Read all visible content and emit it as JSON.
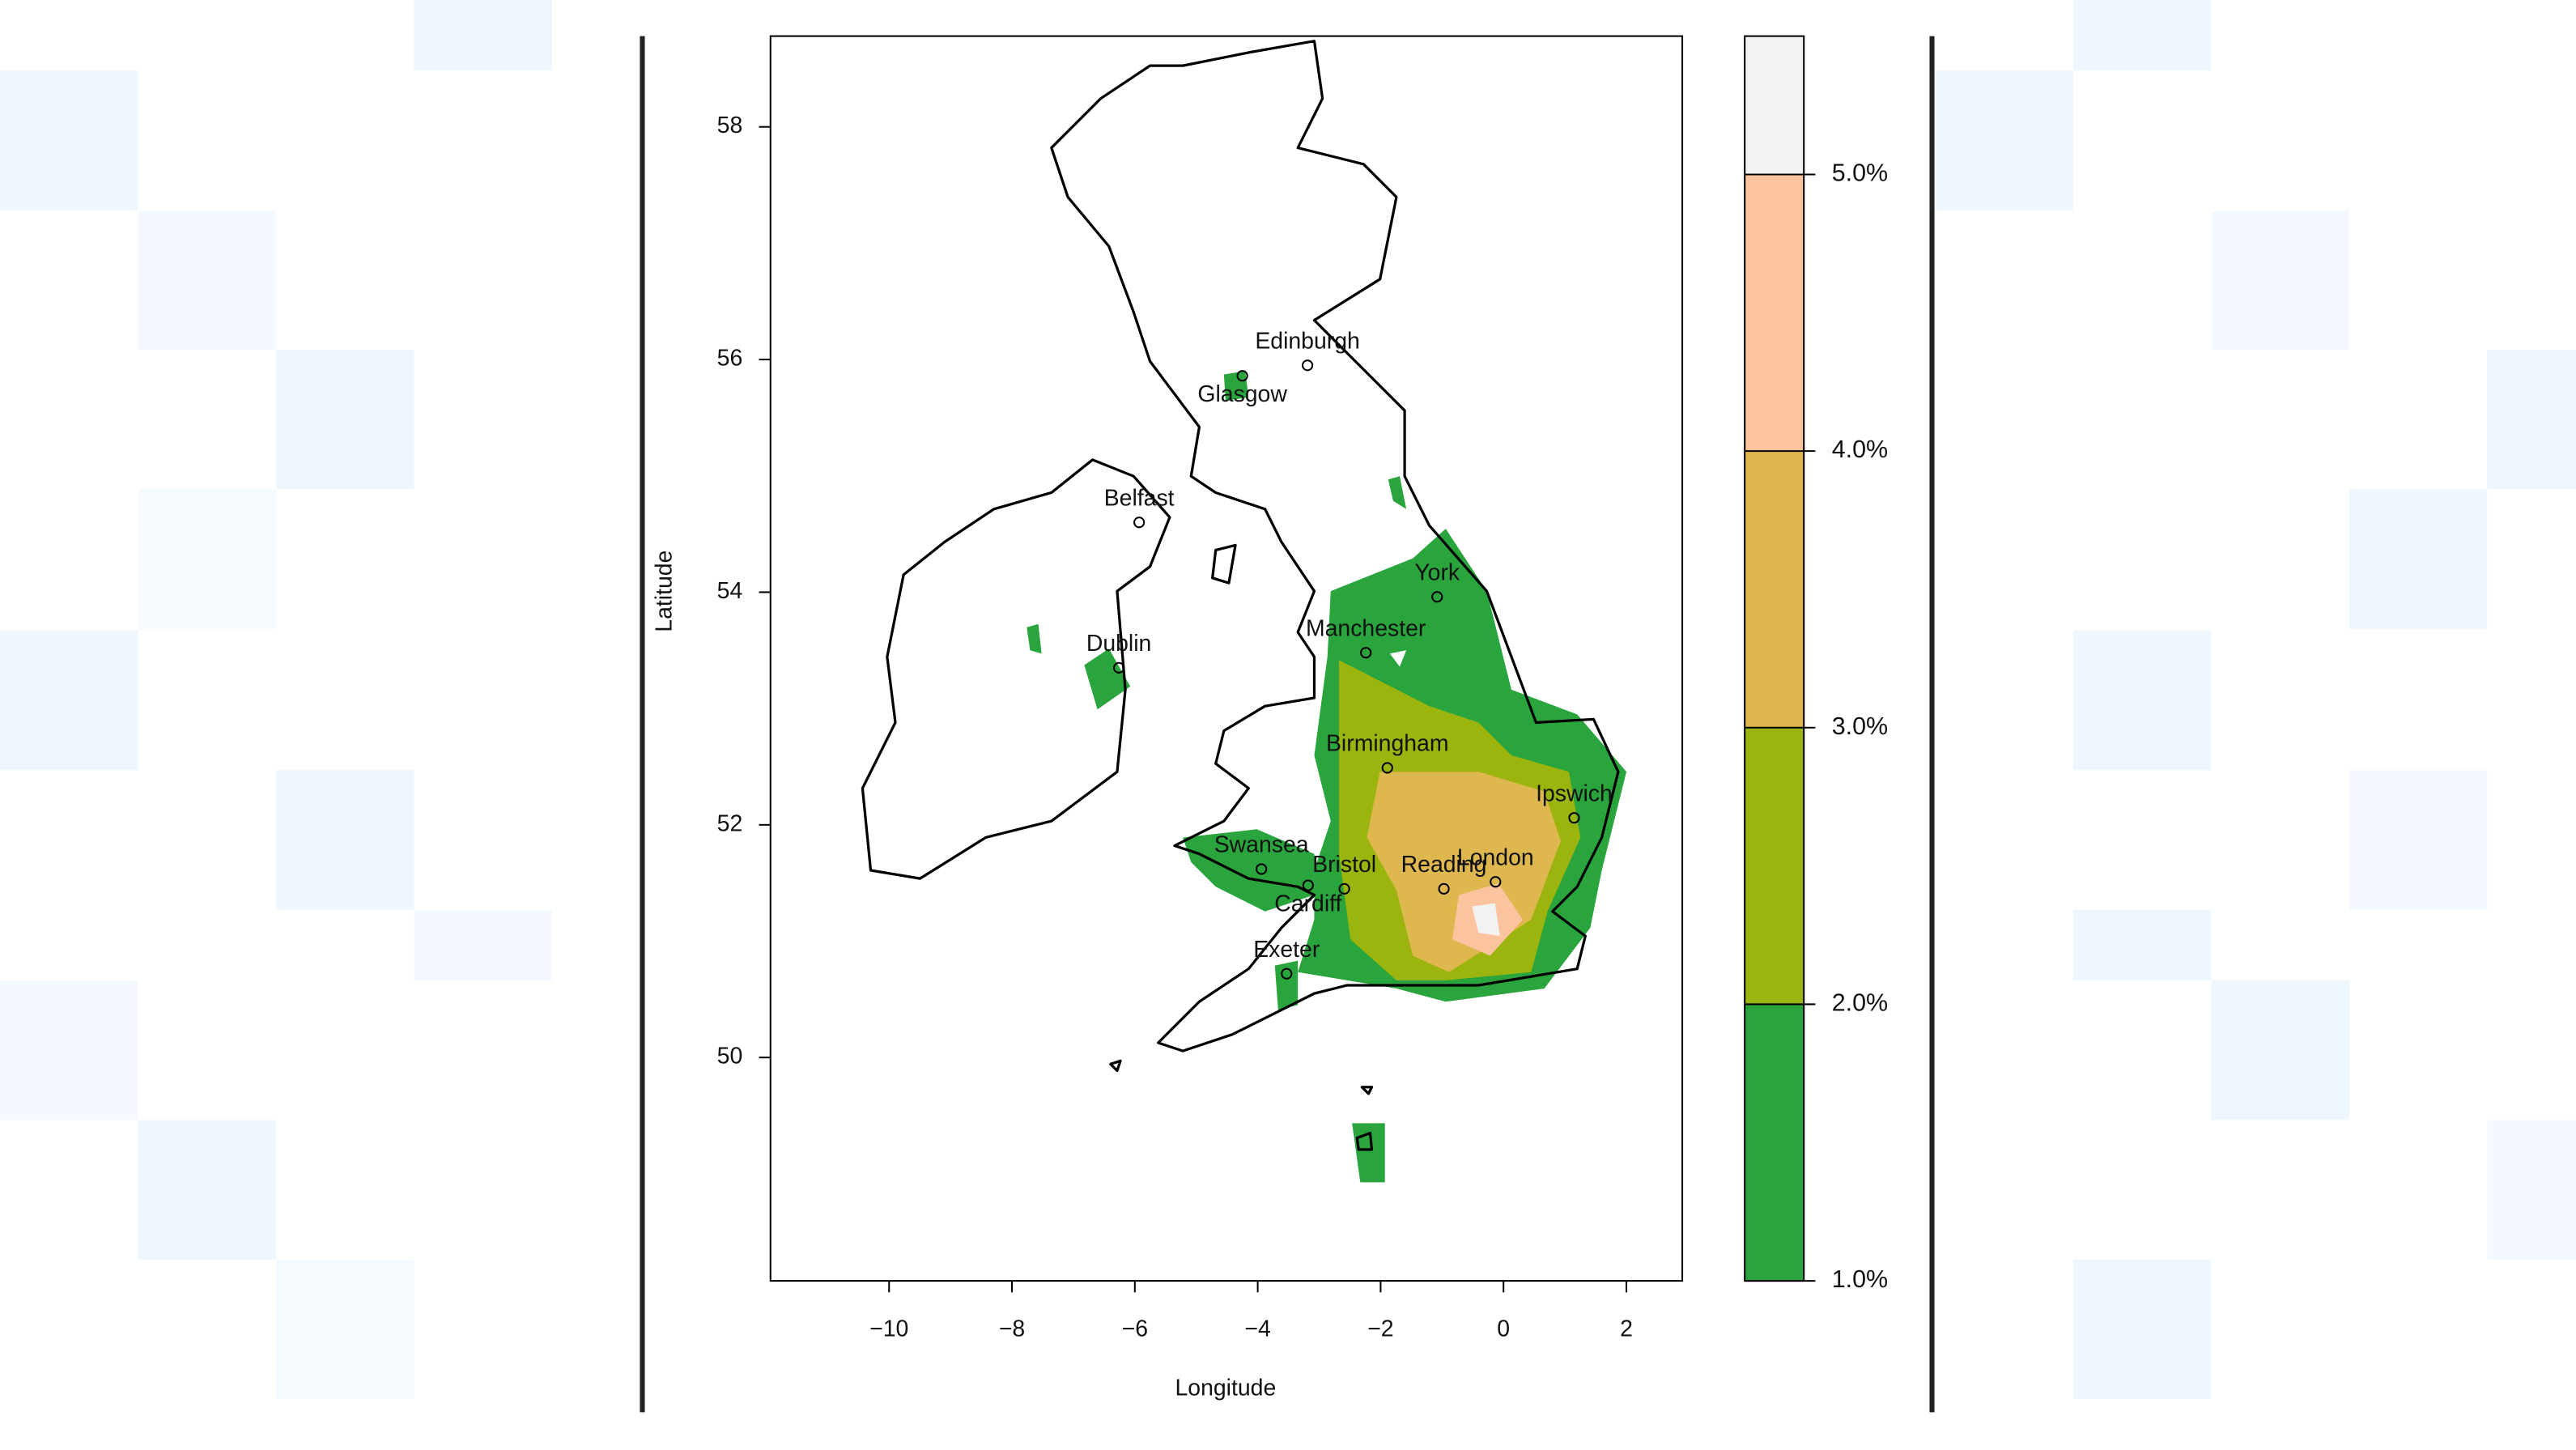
{
  "chart_data": {
    "type": "map",
    "xlabel": "Longitude",
    "ylabel": "Latitude",
    "xlim": [
      -11.93,
      2.91
    ],
    "ylim": [
      48.08,
      58.78
    ],
    "xticks": [
      {
        "value": -10,
        "label": "−10"
      },
      {
        "value": -8,
        "label": "−8"
      },
      {
        "value": -6,
        "label": "−6"
      },
      {
        "value": -4,
        "label": "−4"
      },
      {
        "value": -2,
        "label": "−2"
      },
      0,
      2
    ],
    "yticks": [
      50,
      52,
      54,
      56,
      58
    ],
    "cities": [
      {
        "name": "Edinburgh",
        "lon": -3.19,
        "lat": 55.95
      },
      {
        "name": "Glasgow",
        "lon": -4.25,
        "lat": 55.86
      },
      {
        "name": "Belfast",
        "lon": -5.93,
        "lat": 54.6
      },
      {
        "name": "Dublin",
        "lon": -6.26,
        "lat": 53.35
      },
      {
        "name": "York",
        "lon": -1.08,
        "lat": 53.96
      },
      {
        "name": "Manchester",
        "lon": -2.24,
        "lat": 53.48
      },
      {
        "name": "Birmingham",
        "lon": -1.89,
        "lat": 52.49
      },
      {
        "name": "Ipswich",
        "lon": 1.15,
        "lat": 52.06
      },
      {
        "name": "London",
        "lon": -0.13,
        "lat": 51.51
      },
      {
        "name": "Reading",
        "lon": -0.97,
        "lat": 51.45
      },
      {
        "name": "Bristol",
        "lon": -2.59,
        "lat": 51.45
      },
      {
        "name": "Cardiff",
        "lon": -3.18,
        "lat": 51.48
      },
      {
        "name": "Swansea",
        "lon": -3.94,
        "lat": 51.62
      },
      {
        "name": "Exeter",
        "lon": -3.53,
        "lat": 50.72
      }
    ],
    "colorbar": {
      "lim": [
        1,
        5.5
      ],
      "ticks": [
        {
          "value": 1,
          "label": "1.0%"
        },
        {
          "value": 2,
          "label": "2.0%"
        },
        {
          "value": 3,
          "label": "3.0%"
        },
        {
          "value": 4,
          "label": "4.0%"
        },
        {
          "value": 5,
          "label": "5.0%"
        }
      ],
      "colors": [
        "#2aa43c",
        "#9cb50e",
        "#dfb74f",
        "#fcc39f",
        "#f2f2f2"
      ]
    }
  }
}
